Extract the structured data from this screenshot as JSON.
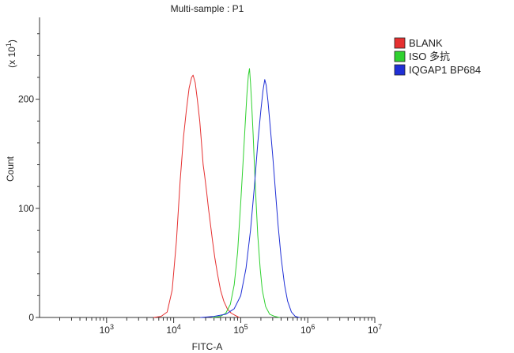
{
  "chart_data": {
    "type": "line",
    "title": "Multi-sample : P1",
    "xlabel": "FITC-A",
    "ylabel": "Count",
    "y_multiplier": "(x 10",
    "y_multiplier_exp": "1",
    "y_multiplier_close": ")",
    "x_scale": "log",
    "xlim": [
      100,
      10000000
    ],
    "ylim": [
      0,
      275
    ],
    "x_ticks": [
      {
        "value": 1000,
        "base": "10",
        "exp": "3"
      },
      {
        "value": 10000,
        "base": "10",
        "exp": "4"
      },
      {
        "value": 100000,
        "base": "10",
        "exp": "5"
      },
      {
        "value": 1000000,
        "base": "10",
        "exp": "6"
      },
      {
        "value": 10000000,
        "base": "10",
        "exp": "7"
      }
    ],
    "y_ticks": [
      {
        "value": 0,
        "label": "0"
      },
      {
        "value": 100,
        "label": "100"
      },
      {
        "value": 200,
        "label": "200"
      }
    ],
    "grid": false,
    "legend_position": "right",
    "series": [
      {
        "name": "BLANK",
        "color": "#e53030",
        "points": [
          [
            5000,
            0
          ],
          [
            6500,
            1
          ],
          [
            8000,
            5
          ],
          [
            9500,
            25
          ],
          [
            11000,
            70
          ],
          [
            12500,
            125
          ],
          [
            14000,
            165
          ],
          [
            15500,
            190
          ],
          [
            17000,
            210
          ],
          [
            18500,
            220
          ],
          [
            19500,
            222
          ],
          [
            21000,
            215
          ],
          [
            22500,
            200
          ],
          [
            24500,
            180
          ],
          [
            26000,
            160
          ],
          [
            27500,
            140
          ],
          [
            29000,
            130
          ],
          [
            31000,
            115
          ],
          [
            33000,
            100
          ],
          [
            35000,
            88
          ],
          [
            38000,
            70
          ],
          [
            41000,
            55
          ],
          [
            45000,
            40
          ],
          [
            50000,
            25
          ],
          [
            56000,
            15
          ],
          [
            63000,
            8
          ],
          [
            72000,
            4
          ],
          [
            82000,
            2
          ],
          [
            95000,
            0
          ]
        ]
      },
      {
        "name": "ISO 多抗",
        "color": "#2fd12f",
        "points": [
          [
            38000,
            0
          ],
          [
            50000,
            1
          ],
          [
            60000,
            4
          ],
          [
            70000,
            12
          ],
          [
            80000,
            30
          ],
          [
            90000,
            60
          ],
          [
            100000,
            105
          ],
          [
            108000,
            140
          ],
          [
            116000,
            175
          ],
          [
            124000,
            205
          ],
          [
            130000,
            222
          ],
          [
            135000,
            228
          ],
          [
            140000,
            215
          ],
          [
            146000,
            195
          ],
          [
            153000,
            168
          ],
          [
            160000,
            140
          ],
          [
            170000,
            105
          ],
          [
            180000,
            75
          ],
          [
            195000,
            45
          ],
          [
            210000,
            25
          ],
          [
            235000,
            10
          ],
          [
            270000,
            3
          ],
          [
            320000,
            1
          ],
          [
            380000,
            0
          ]
        ]
      },
      {
        "name": "IQGAP1 BP684",
        "color": "#1f2fd6",
        "points": [
          [
            25000,
            0
          ],
          [
            40000,
            1
          ],
          [
            60000,
            3
          ],
          [
            80000,
            8
          ],
          [
            100000,
            20
          ],
          [
            120000,
            45
          ],
          [
            140000,
            80
          ],
          [
            160000,
            120
          ],
          [
            180000,
            160
          ],
          [
            200000,
            190
          ],
          [
            215000,
            208
          ],
          [
            228000,
            218
          ],
          [
            240000,
            213
          ],
          [
            255000,
            198
          ],
          [
            275000,
            175
          ],
          [
            300000,
            148
          ],
          [
            330000,
            115
          ],
          [
            360000,
            85
          ],
          [
            400000,
            55
          ],
          [
            450000,
            30
          ],
          [
            500000,
            15
          ],
          [
            570000,
            5
          ],
          [
            650000,
            1
          ],
          [
            750000,
            0
          ]
        ]
      }
    ]
  }
}
